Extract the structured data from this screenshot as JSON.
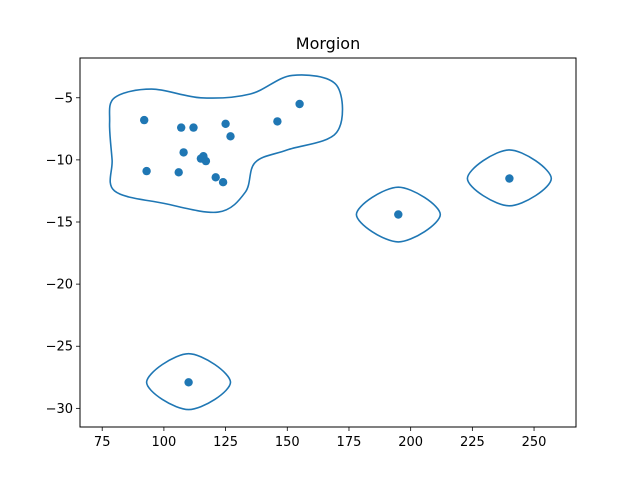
{
  "chart_data": {
    "type": "scatter",
    "title": "Morgion",
    "xlabel": "",
    "ylabel": "",
    "xlim": [
      66,
      267
    ],
    "ylim": [
      -31.5,
      -1.8
    ],
    "xticks": [
      75,
      100,
      125,
      150,
      175,
      200,
      225,
      250
    ],
    "yticks": [
      -5,
      -10,
      -15,
      -20,
      -25,
      -30
    ],
    "xtick_labels": [
      "75",
      "100",
      "125",
      "150",
      "175",
      "200",
      "225",
      "250"
    ],
    "ytick_labels": [
      "−5",
      "−10",
      "−15",
      "−20",
      "−25",
      "−30"
    ],
    "grid": false,
    "legend": "none",
    "color": "#1f77b4",
    "points": [
      {
        "x": 92,
        "y": -6.8
      },
      {
        "x": 107,
        "y": -7.4
      },
      {
        "x": 112,
        "y": -7.4
      },
      {
        "x": 125,
        "y": -7.1
      },
      {
        "x": 146,
        "y": -6.9
      },
      {
        "x": 155,
        "y": -5.5
      },
      {
        "x": 127,
        "y": -8.1
      },
      {
        "x": 108,
        "y": -9.4
      },
      {
        "x": 115,
        "y": -9.9
      },
      {
        "x": 116,
        "y": -9.7
      },
      {
        "x": 117,
        "y": -10.1
      },
      {
        "x": 93,
        "y": -10.9
      },
      {
        "x": 106,
        "y": -11.0
      },
      {
        "x": 121,
        "y": -11.4
      },
      {
        "x": 124,
        "y": -11.8
      },
      {
        "x": 195,
        "y": -14.4
      },
      {
        "x": 240,
        "y": -11.5
      },
      {
        "x": 110,
        "y": -27.9
      }
    ],
    "contours": [
      {
        "points": [
          [
            80,
            -5
          ],
          [
            95,
            -4.3
          ],
          [
            115,
            -5
          ],
          [
            135,
            -4.7
          ],
          [
            152,
            -3.2
          ],
          [
            170,
            -4
          ],
          [
            170,
            -7.8
          ],
          [
            150,
            -9.2
          ],
          [
            137,
            -10.2
          ],
          [
            133,
            -12.6
          ],
          [
            122,
            -14.2
          ],
          [
            100,
            -13.5
          ],
          [
            80,
            -12.5
          ],
          [
            79,
            -10
          ],
          [
            78,
            -7
          ]
        ]
      },
      {
        "points": [
          [
            178,
            -14.4
          ],
          [
            195,
            -12.2
          ],
          [
            212,
            -14.4
          ],
          [
            195,
            -16.6
          ]
        ]
      },
      {
        "points": [
          [
            223,
            -11.5
          ],
          [
            240,
            -9.2
          ],
          [
            257,
            -11.5
          ],
          [
            240,
            -13.7
          ]
        ]
      },
      {
        "points": [
          [
            93,
            -27.9
          ],
          [
            110,
            -25.6
          ],
          [
            127,
            -27.9
          ],
          [
            110,
            -30.1
          ]
        ]
      }
    ]
  }
}
